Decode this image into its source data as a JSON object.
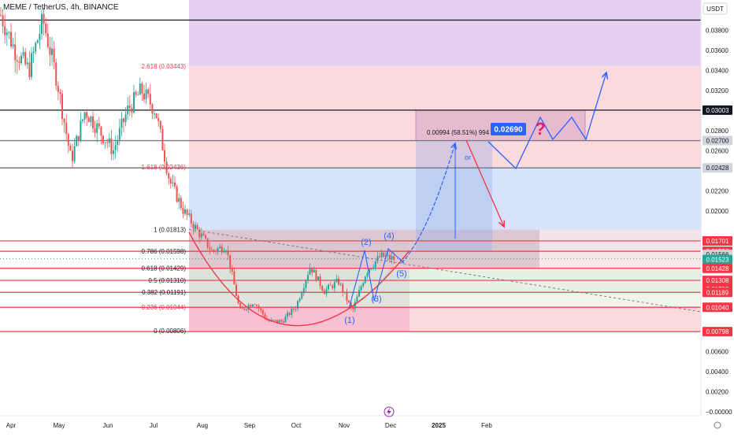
{
  "header": {
    "title": "MEME / TetherUS, 4h, BINANCE",
    "currency": "USDT"
  },
  "colors": {
    "up": "#26a69a",
    "down": "#ef5350",
    "drawing_blue": "#2962ff",
    "red_line": "#f23645",
    "purple_zone": "#e1c8ef",
    "red_zone": "#fadadd",
    "blue_zone": "#d7e3fb",
    "pink_zone": "#f5b7cf",
    "green_zone": "#e5f2e5",
    "label_red": "#f23645",
    "label_dark": "#131722",
    "label_blue_badge": "#2962ff"
  },
  "chart_data": {
    "type": "candlestick",
    "symbol": "MEME / TetherUS",
    "interval": "4h",
    "exchange": "BINANCE",
    "x_ticks": [
      "Apr",
      "May",
      "Jun",
      "Jul",
      "Aug",
      "Sep",
      "Oct",
      "Nov",
      "Dec",
      "2025",
      "Feb"
    ],
    "y_ticks": [
      "0.03800",
      "0.03600",
      "0.03400",
      "0.03200",
      "0.02800",
      "0.02600",
      "0.02200",
      "0.02000",
      "0.00600",
      "0.00400",
      "0.00200",
      "−0.00000"
    ],
    "ylim": [
      -0.0004,
      0.0411
    ],
    "price_path": [
      [
        "Apr",
        0.0395
      ],
      [
        "Apr",
        0.036
      ],
      [
        "Apr",
        0.034
      ],
      [
        "Apr",
        0.039
      ],
      [
        "Apr",
        0.033
      ],
      [
        "May",
        0.025
      ],
      [
        "May",
        0.03
      ],
      [
        "May",
        0.028
      ],
      [
        "May",
        0.026
      ],
      [
        "May",
        0.03
      ],
      [
        "Jun",
        0.032
      ],
      [
        "Jun",
        0.03
      ],
      [
        "Jun",
        0.023
      ],
      [
        "Jun",
        0.02
      ],
      [
        "Jul",
        0.018
      ],
      [
        "Jul",
        0.016
      ],
      [
        "Jul",
        0.0165
      ],
      [
        "Aug",
        0.01
      ],
      [
        "Aug",
        0.011
      ],
      [
        "Sep",
        0.009
      ],
      [
        "Sep",
        0.009
      ],
      [
        "Oct",
        0.0105
      ],
      [
        "Oct",
        0.0145
      ],
      [
        "Oct",
        0.012
      ],
      [
        "Nov",
        0.013
      ],
      [
        "Nov",
        0.01
      ],
      [
        "Nov",
        0.014
      ],
      [
        "Nov",
        0.0155
      ],
      [
        "Dec",
        0.0152
      ]
    ],
    "price_labels": [
      {
        "value": 0.03003,
        "text": "0.03003",
        "style": "black"
      },
      {
        "value": 0.027,
        "text": "0.02700",
        "style": "gray"
      },
      {
        "value": 0.02428,
        "text": "0.02428",
        "style": "gray"
      },
      {
        "value": 0.01701,
        "text": "0.01701",
        "style": "red"
      },
      {
        "value": 0.01598,
        "text": "0.01598",
        "style": "red"
      },
      {
        "value": 0.01566,
        "text": "0.01566",
        "style": "gray"
      },
      {
        "value": 0.01523,
        "text": "0.01523",
        "style": "teal"
      },
      {
        "value": 0.01428,
        "text": "0.01428",
        "style": "red"
      },
      {
        "value": 0.01308,
        "text": "0.01308",
        "style": "red"
      },
      {
        "value": 0.01308,
        "text": "0.01308",
        "style": "red"
      },
      {
        "value": 0.01189,
        "text": "0.01189",
        "style": "red"
      },
      {
        "value": 0.0104,
        "text": "0.01040",
        "style": "red"
      },
      {
        "value": 0.00798,
        "text": "0.00798",
        "style": "red"
      }
    ],
    "fib_levels": [
      {
        "ratio": "2.618",
        "price": "(0.03443)",
        "value": 0.03443
      },
      {
        "ratio": "1.618",
        "price": "(0.02436)",
        "value": 0.02436
      },
      {
        "ratio": "1",
        "price": "(0.01813)",
        "value": 0.01813
      },
      {
        "ratio": "0.786",
        "price": "(0.01598)",
        "value": 0.01598
      },
      {
        "ratio": "0.618",
        "price": "(0.01429)",
        "value": 0.01429
      },
      {
        "ratio": "0.5",
        "price": "(0.01310)",
        "value": 0.0131
      },
      {
        "ratio": "0.382",
        "price": "(0.01191)",
        "value": 0.01191
      },
      {
        "ratio": "0.236",
        "price": "(0.01044)",
        "value": 0.01044
      },
      {
        "ratio": "0",
        "price": "(0.00806)",
        "value": 0.00806
      }
    ],
    "horizontal_lines": [
      {
        "value": 0.039,
        "color": "black"
      },
      {
        "value": 0.03003,
        "color": "black"
      },
      {
        "value": 0.027,
        "color": "gray"
      },
      {
        "value": 0.02428,
        "color": "gray"
      },
      {
        "value": 0.01701,
        "color": "red"
      },
      {
        "value": 0.01598,
        "color": "red"
      },
      {
        "value": 0.01428,
        "color": "red"
      },
      {
        "value": 0.01308,
        "color": "red"
      },
      {
        "value": 0.01189,
        "color": "red"
      },
      {
        "value": 0.0104,
        "color": "red"
      },
      {
        "value": 0.00798,
        "color": "red"
      }
    ],
    "annotations": {
      "measure_label": "0.00994 (58.51%) 994",
      "target_badge": "0.02690",
      "or_label": "or",
      "question_mark": "?",
      "wave_labels": [
        "(1)",
        "(2)",
        "(3)",
        "(4)",
        "(5)"
      ]
    }
  }
}
